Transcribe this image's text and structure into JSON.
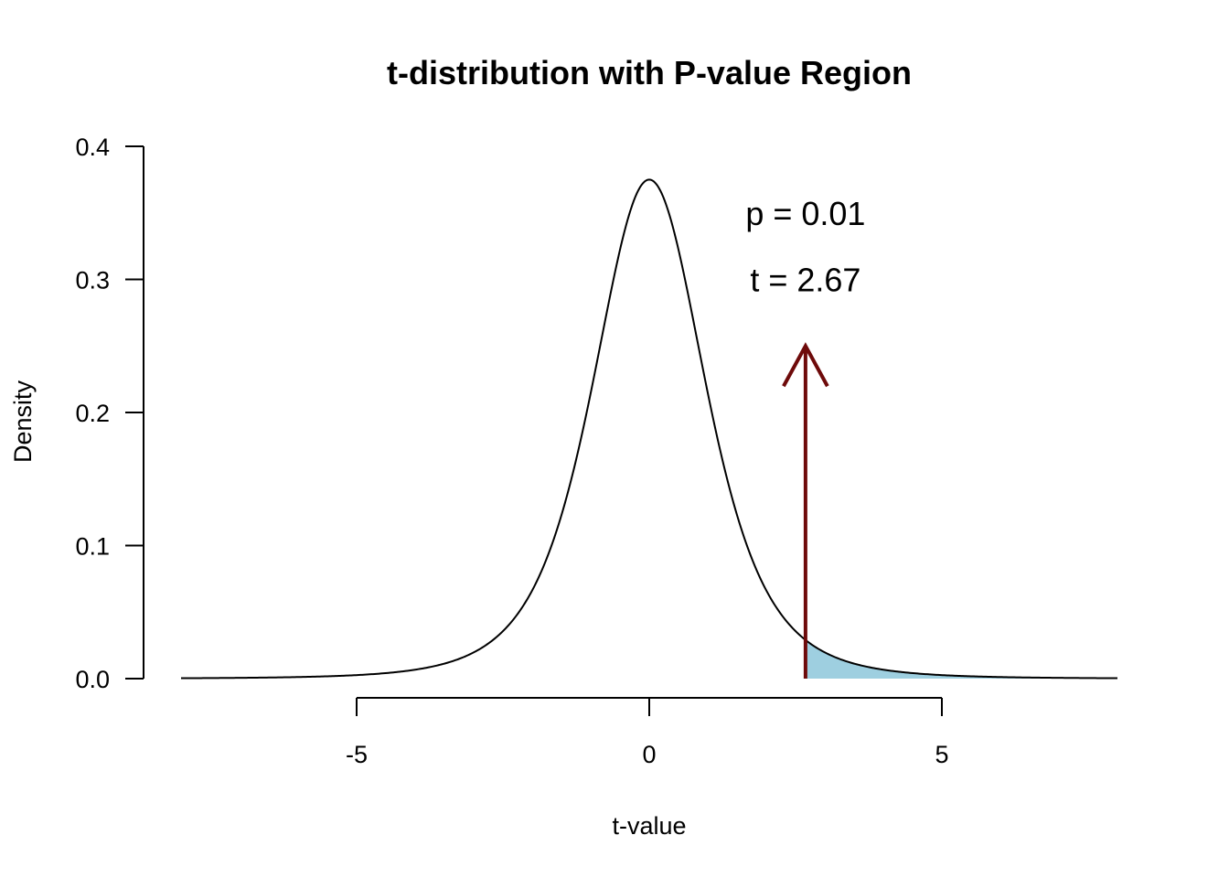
{
  "chart_data": {
    "type": "area",
    "title": "t-distribution with P-value Region",
    "xlabel": "t-value",
    "ylabel": "Density",
    "xlim": [
      -8,
      8
    ],
    "ylim": [
      0,
      0.4
    ],
    "x_ticks": [
      -5,
      0,
      5
    ],
    "y_ticks": [
      0.0,
      0.1,
      0.2,
      0.3,
      0.4
    ],
    "x_tick_labels": [
      "-5",
      "0",
      "5"
    ],
    "y_tick_labels": [
      "0.0",
      "0.1",
      "0.2",
      "0.3",
      "0.4"
    ],
    "grid": false,
    "series": [
      {
        "type": "line",
        "distribution": "t",
        "df": 4,
        "x_range": [
          -8,
          8
        ],
        "color": "#000000",
        "peak": 0.375
      },
      {
        "type": "area",
        "shaded_from": 2.67,
        "shaded_to": 8,
        "color": "#9ecfe0"
      }
    ],
    "arrow": {
      "x": 2.67,
      "y_start": 0,
      "y_end": 0.25,
      "color": "#6e0a0a"
    },
    "annotations": [
      {
        "text": "p = 0.01",
        "x": 2.67,
        "y": 0.35
      },
      {
        "text": "t = 2.67",
        "x": 2.67,
        "y": 0.3
      }
    ]
  }
}
